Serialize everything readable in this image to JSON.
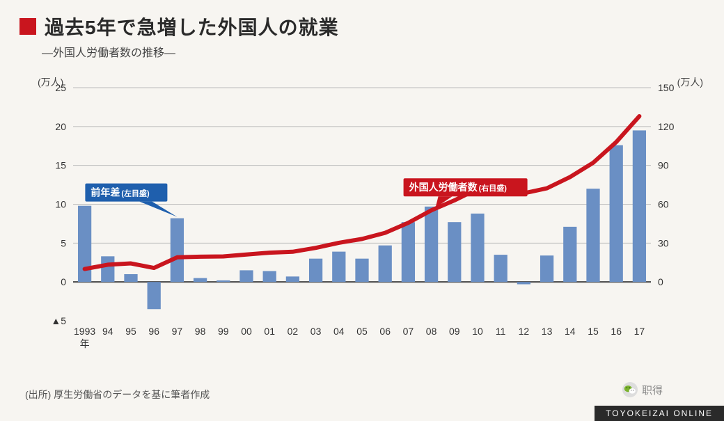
{
  "header": {
    "title": "過去5年で急増した外国人の就業",
    "subtitle": "―外国人労働者数の推移―"
  },
  "chart": {
    "type": "bar+line",
    "background_color": "#f7f5f1",
    "grid_color": "#bbbbbb",
    "baseline_color": "#444444",
    "left_axis": {
      "unit": "(万人)",
      "min": -5,
      "max": 25,
      "step": 5,
      "tick_labels": [
        "▲5",
        "0",
        "5",
        "10",
        "15",
        "20",
        "25"
      ],
      "label_fontsize": 14
    },
    "right_axis": {
      "unit": "(万人)",
      "min": -30,
      "max": 150,
      "step": 30,
      "tick_labels": [
        "",
        "0",
        "30",
        "60",
        "90",
        "120",
        "150"
      ],
      "label_fontsize": 14
    },
    "years_display": [
      "1993\n年",
      "94",
      "95",
      "96",
      "97",
      "98",
      "99",
      "00",
      "01",
      "02",
      "03",
      "04",
      "05",
      "06",
      "07",
      "08",
      "09",
      "10",
      "11",
      "12",
      "13",
      "14",
      "15",
      "16",
      "17"
    ],
    "bar_series": {
      "name": "前年差",
      "sub": "(左目盛)",
      "color": "#6a8fc4",
      "bar_width_ratio": 0.58,
      "values": [
        9.8,
        3.3,
        1.0,
        -3.5,
        8.2,
        0.5,
        0.2,
        1.5,
        1.4,
        0.7,
        3.0,
        3.9,
        3.0,
        4.7,
        7.7,
        9.7,
        7.7,
        8.8,
        3.5,
        -0.3,
        3.4,
        7.1,
        12.0,
        17.6,
        19.5
      ]
    },
    "line_series": {
      "name": "外国人労働者数",
      "sub": "(右目盛)",
      "color": "#c9151e",
      "line_width": 6,
      "values": [
        10,
        13.3,
        14.3,
        10.8,
        19.0,
        19.5,
        19.7,
        21.2,
        22.6,
        23.3,
        26.3,
        30.2,
        33.2,
        37.9,
        45.6,
        55.3,
        63.0,
        71.8,
        70.0,
        68.5,
        72.3,
        81.0,
        92.0,
        108.0,
        128.0
      ]
    },
    "callout_bar": {
      "box_color": "#1f5fad",
      "text_color": "#ffffff",
      "target_year": "97"
    },
    "callout_line": {
      "box_color": "#c9151e",
      "text_color": "#ffffff"
    }
  },
  "footer": {
    "source": "(出所) 厚生労働省のデータを基に筆者作成",
    "brand": "TOYOKEIZAI ONLINE",
    "wechat_label": "职得"
  }
}
